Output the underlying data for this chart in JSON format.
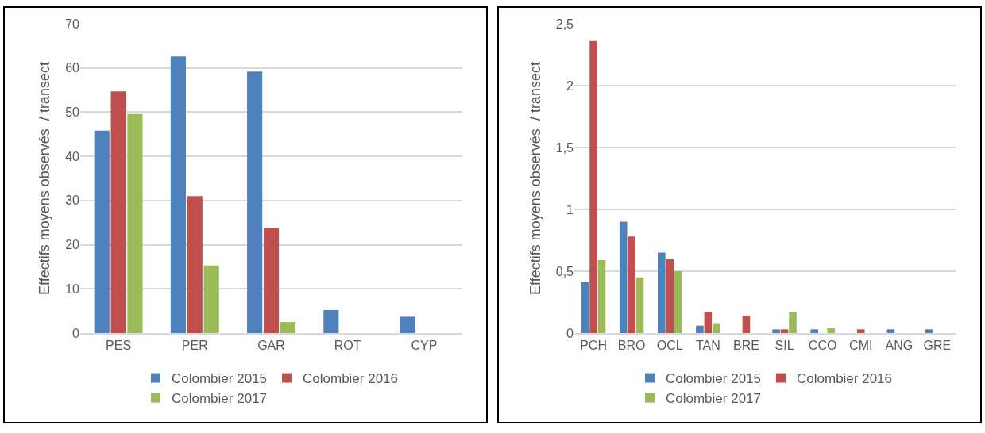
{
  "chart_data": [
    {
      "type": "bar",
      "ylabel": "Effectifs moyens observés  / transect",
      "categories": [
        "PES",
        "PER",
        "GAR",
        "ROT",
        "CYP"
      ],
      "series": [
        {
          "name": "Colombier 2015",
          "color": "#4f81bd",
          "values": [
            45.8,
            62.6,
            59.2,
            5.2,
            3.7
          ]
        },
        {
          "name": "Colombier 2016",
          "color": "#c0504d",
          "values": [
            54.7,
            31,
            23.8,
            null,
            null
          ]
        },
        {
          "name": "Colombier 2017",
          "color": "#9bbb59",
          "values": [
            49.6,
            15.3,
            2.5,
            null,
            null
          ]
        }
      ],
      "ylim": [
        0,
        70
      ],
      "yticks": [
        0,
        10,
        20,
        30,
        40,
        50,
        60,
        70
      ],
      "grid": "y",
      "legend": "bottom"
    },
    {
      "type": "bar",
      "ylabel": "Effectifs moyens observés  / transect",
      "categories": [
        "PCH",
        "BRO",
        "OCL",
        "TAN",
        "BRE",
        "SIL",
        "CCO",
        "CMI",
        "ANG",
        "GRE"
      ],
      "series": [
        {
          "name": "Colombier 2015",
          "color": "#4f81bd",
          "values": [
            0.41,
            0.9,
            0.65,
            0.06,
            null,
            0.03,
            0.03,
            null,
            0.03,
            0.03
          ]
        },
        {
          "name": "Colombier 2016",
          "color": "#c0504d",
          "values": [
            2.36,
            0.78,
            0.6,
            0.17,
            0.14,
            0.03,
            null,
            0.03,
            null,
            null
          ]
        },
        {
          "name": "Colombier 2017",
          "color": "#9bbb59",
          "values": [
            0.59,
            0.45,
            0.5,
            0.08,
            null,
            0.17,
            0.04,
            null,
            null,
            null
          ]
        }
      ],
      "ylim": [
        0,
        2.5
      ],
      "yticks": [
        0,
        {
          "value": 0.5,
          "label": "0,5"
        },
        1,
        {
          "value": 1.5,
          "label": "1,5"
        },
        2,
        {
          "value": 2.5,
          "label": "2,5"
        }
      ],
      "grid": "y",
      "legend": "bottom"
    }
  ]
}
